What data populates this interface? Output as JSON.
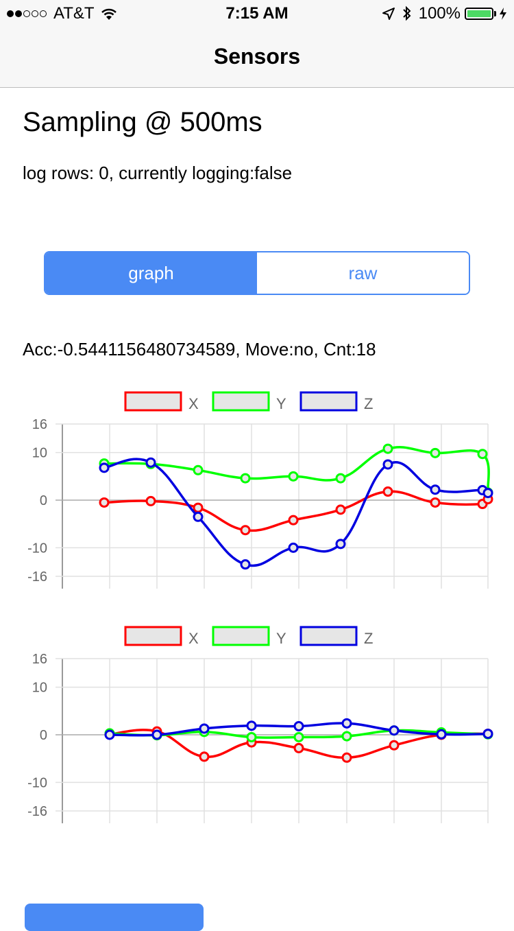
{
  "status_bar": {
    "carrier": "AT&T",
    "time": "7:15 AM",
    "battery": "100%",
    "signal_bars_filled": 2,
    "signal_bars_total": 5,
    "battery_color": "#4cd964"
  },
  "nav": {
    "title": "Sensors"
  },
  "heading": "Sampling @ 500ms",
  "log_info": "log rows: 0, currently logging:false",
  "segmented": {
    "active": "graph",
    "options": [
      "graph",
      "raw"
    ],
    "accent": "#4a8af4"
  },
  "acc_line": "Acc:-0.5441156480734589, Move:no, Cnt:18",
  "chart_data": [
    {
      "type": "line",
      "title": "",
      "xlabel": "",
      "ylabel": "",
      "ylim": [
        -16,
        16
      ],
      "yticks": [
        "16",
        "10",
        "0",
        "-10",
        "-16"
      ],
      "grid": true,
      "legend_position": "top-center",
      "x": [
        1,
        2,
        3,
        4,
        5,
        6,
        7,
        8,
        9,
        10
      ],
      "series": [
        {
          "name": "X",
          "color": "#ff0000",
          "values": [
            -0.5,
            -0.2,
            -1.6,
            -6.3,
            -4.2,
            -2.0,
            1.8,
            -0.5,
            -0.8,
            0.2
          ]
        },
        {
          "name": "Y",
          "color": "#00ff00",
          "values": [
            7.7,
            7.6,
            6.3,
            4.6,
            5.0,
            4.6,
            10.8,
            9.9,
            9.7,
            1.6
          ]
        },
        {
          "name": "Z",
          "color": "#0000e0",
          "values": [
            6.8,
            7.9,
            -3.5,
            -13.5,
            -10.0,
            -9.2,
            7.5,
            2.2,
            2.1,
            1.5
          ]
        }
      ]
    },
    {
      "type": "line",
      "title": "",
      "xlabel": "",
      "ylabel": "",
      "ylim": [
        -16,
        16
      ],
      "yticks": [
        "16",
        "10",
        "0",
        "-10",
        "-16"
      ],
      "grid": true,
      "legend_position": "top-center",
      "x": [
        1,
        2,
        3,
        4,
        5,
        6,
        7,
        8,
        9
      ],
      "series": [
        {
          "name": "X",
          "color": "#ff0000",
          "values": [
            0.1,
            0.7,
            -4.6,
            -1.6,
            -2.8,
            -4.8,
            -2.2,
            0.0,
            0.2
          ]
        },
        {
          "name": "Y",
          "color": "#00ff00",
          "values": [
            0.3,
            -0.1,
            0.6,
            -0.5,
            -0.5,
            -0.3,
            0.9,
            0.5,
            0.1
          ]
        },
        {
          "name": "Z",
          "color": "#0000e0",
          "values": [
            0.0,
            0.0,
            1.3,
            1.9,
            1.8,
            2.4,
            0.9,
            0.1,
            0.2
          ]
        }
      ]
    }
  ]
}
